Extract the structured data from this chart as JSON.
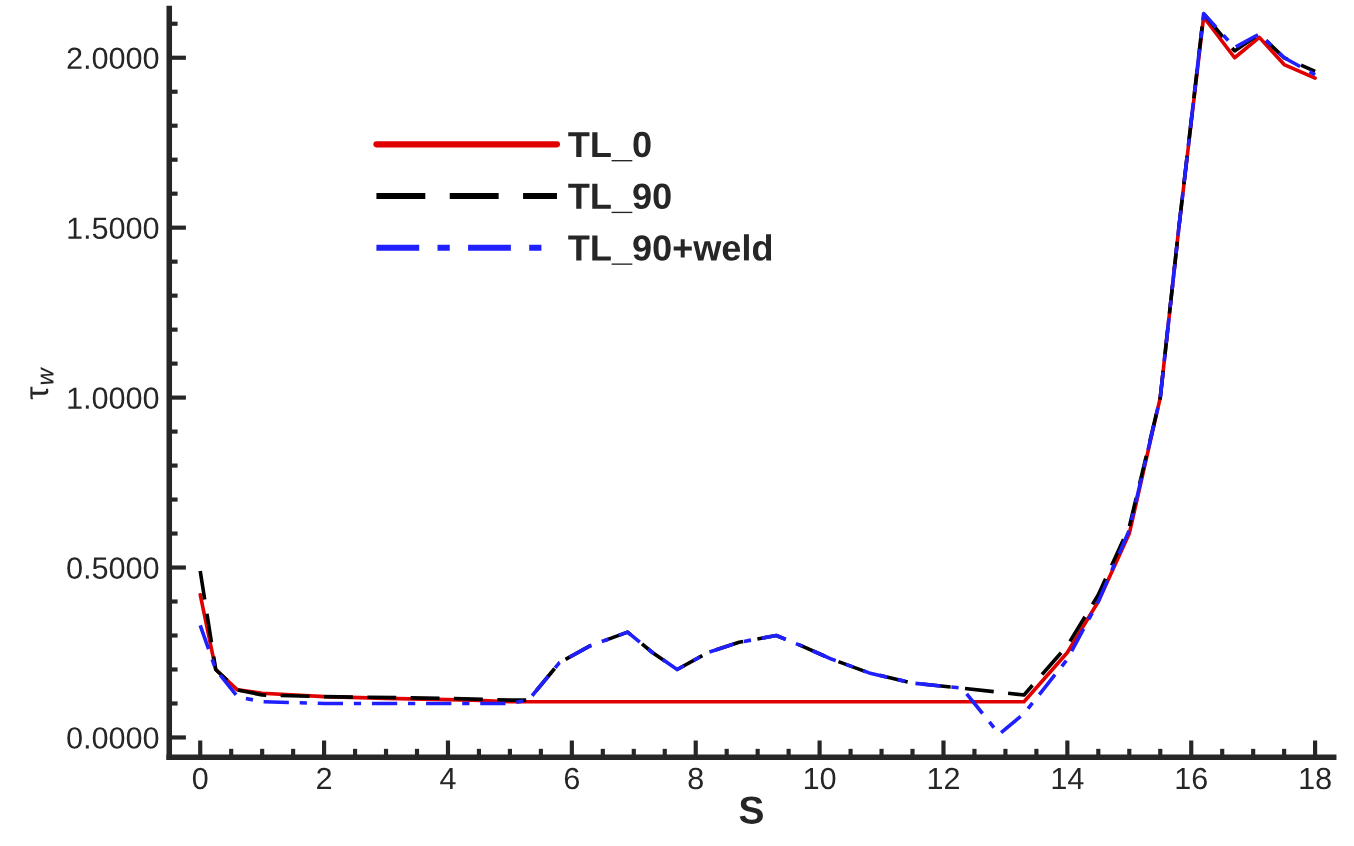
{
  "chart_data": {
    "type": "line",
    "xlabel": "S",
    "ylabel": "τ$_{w}$",
    "xlim": [
      -0.5,
      18.3
    ],
    "ylim": [
      -0.058,
      2.145
    ],
    "xticks": [
      0,
      2,
      4,
      6,
      8,
      10,
      12,
      14,
      16,
      18
    ],
    "yticks": [
      {
        "value": 0,
        "label": "0.0000"
      },
      {
        "value": 0.5,
        "label": "0.5000"
      },
      {
        "value": 1.0,
        "label": "1.0000"
      },
      {
        "value": 1.5,
        "label": "1.5000"
      },
      {
        "value": 2.0,
        "label": "2.0000"
      }
    ],
    "grid": false,
    "legend": "top left",
    "series": [
      {
        "name": "TL_0",
        "color": "#e00000",
        "line_style": "solid",
        "x": [
          0,
          0.25,
          0.6,
          1,
          2,
          3,
          4.4,
          5,
          13.3,
          14,
          14.5,
          15,
          15.5,
          15.8,
          16.2,
          16.7,
          17.1,
          17.5,
          18
        ],
        "values": [
          0.42,
          0.2,
          0.14,
          0.13,
          0.12,
          0.115,
          0.11,
          0.105,
          0.105,
          0.25,
          0.4,
          0.6,
          1.0,
          1.5,
          2.12,
          2.0,
          2.06,
          1.98,
          1.94
        ]
      },
      {
        "name": "TL_90",
        "color": "#000000",
        "line_style": "dashed",
        "x": [
          0,
          0.25,
          0.6,
          1,
          2,
          4,
          5,
          5.3,
          5.8,
          6.3,
          6.9,
          7.3,
          7.7,
          8.2,
          8.7,
          9.3,
          9.7,
          10.2,
          10.8,
          11.5,
          12.3,
          13.3,
          14,
          14.5,
          15,
          15.5,
          15.8,
          16.2,
          16.7,
          17.1,
          17.5,
          18
        ],
        "values": [
          0.49,
          0.2,
          0.14,
          0.125,
          0.12,
          0.115,
          0.11,
          0.11,
          0.22,
          0.27,
          0.31,
          0.25,
          0.2,
          0.25,
          0.28,
          0.3,
          0.27,
          0.23,
          0.19,
          0.16,
          0.145,
          0.125,
          0.27,
          0.42,
          0.62,
          1.0,
          1.5,
          2.13,
          2.02,
          2.07,
          2.0,
          1.96
        ]
      },
      {
        "name": "TL_90+weld",
        "color": "#2020ff",
        "line_style": "dashdot",
        "x": [
          0,
          0.25,
          0.6,
          1,
          2,
          4,
          5,
          5.3,
          5.8,
          6.3,
          6.9,
          7.3,
          7.7,
          8.2,
          8.7,
          9.3,
          9.7,
          10.2,
          10.8,
          11.5,
          12.3,
          12.9,
          13.3,
          14,
          14.5,
          15,
          15.5,
          15.8,
          16.2,
          16.7,
          17.1,
          17.5,
          18
        ],
        "values": [
          0.33,
          0.2,
          0.12,
          0.105,
          0.1,
          0.1,
          0.1,
          0.11,
          0.22,
          0.27,
          0.31,
          0.25,
          0.2,
          0.25,
          0.28,
          0.3,
          0.27,
          0.23,
          0.19,
          0.16,
          0.145,
          0.01,
          0.07,
          0.23,
          0.4,
          0.61,
          1.0,
          1.5,
          2.13,
          2.03,
          2.07,
          2.0,
          1.95
        ]
      }
    ]
  }
}
